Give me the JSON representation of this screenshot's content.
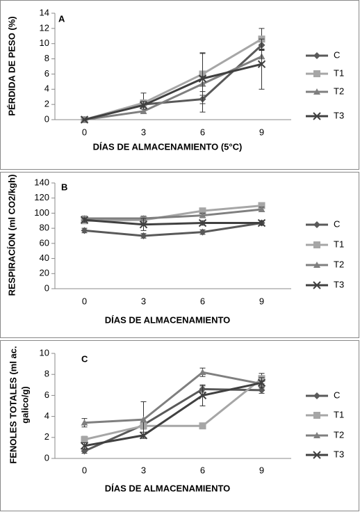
{
  "chart_data": [
    {
      "type": "line",
      "annotation": "A",
      "xlabel": "DÍAS DE ALMACENAMIENTO (5°C)",
      "ylabel": "PÉRDIDA DE PESO (%)",
      "categories": [
        "0",
        "3",
        "6",
        "9"
      ],
      "ylim": [
        0,
        14
      ],
      "yticks": [
        0,
        2,
        4,
        6,
        8,
        10,
        12,
        14
      ],
      "legend": "right",
      "series": [
        {
          "name": "C",
          "color": "#595959",
          "marker": "diamond",
          "values": [
            0,
            2.0,
            2.7,
            9.8
          ],
          "errors": [
            0,
            0.4,
            1.7,
            0.5
          ]
        },
        {
          "name": "T1",
          "color": "#a6a6a6",
          "marker": "square",
          "values": [
            0,
            2.2,
            6.0,
            10.6
          ],
          "errors": [
            0,
            1.3,
            2.8,
            1.4
          ]
        },
        {
          "name": "T2",
          "color": "#7f7f7f",
          "marker": "triangle",
          "values": [
            0,
            1.1,
            4.7,
            8.3
          ],
          "errors": [
            0,
            0.3,
            1.0,
            0.8
          ]
        },
        {
          "name": "T3",
          "color": "#404040",
          "marker": "x",
          "values": [
            0,
            1.9,
            5.4,
            7.3
          ],
          "errors": [
            0,
            0.5,
            3.3,
            3.3
          ]
        }
      ]
    },
    {
      "type": "line",
      "annotation": "B",
      "xlabel": "DÍAS DE ALMACENAMIENTO",
      "ylabel": "RESPIRACÍON (ml CO2/kgh)",
      "categories": [
        "0",
        "3",
        "6",
        "9"
      ],
      "ylim": [
        0,
        140
      ],
      "yticks": [
        0,
        20,
        40,
        60,
        80,
        100,
        120,
        140
      ],
      "legend": "right",
      "series": [
        {
          "name": "C",
          "color": "#595959",
          "marker": "diamond",
          "values": [
            77,
            70,
            75,
            87
          ],
          "errors": [
            3,
            3,
            3,
            3
          ]
        },
        {
          "name": "T1",
          "color": "#a6a6a6",
          "marker": "square",
          "values": [
            90,
            91,
            103,
            110
          ],
          "errors": [
            3,
            3,
            3,
            3
          ]
        },
        {
          "name": "T2",
          "color": "#7f7f7f",
          "marker": "triangle",
          "values": [
            93,
            93,
            97,
            105
          ],
          "errors": [
            3,
            3,
            3,
            3
          ]
        },
        {
          "name": "T3",
          "color": "#404040",
          "marker": "x",
          "values": [
            91,
            85,
            87,
            87
          ],
          "errors": [
            3,
            8,
            3,
            3
          ]
        }
      ]
    },
    {
      "type": "line",
      "annotation": "C",
      "xlabel": "DÍAS DE ALMACENAMIENTO",
      "ylabel": [
        "FENOLES TOTALES (ml ac.",
        "galico/g)"
      ],
      "categories": [
        "0",
        "3",
        "6",
        "9"
      ],
      "ylim": [
        0,
        10
      ],
      "yticks": [
        0,
        2,
        4,
        6,
        8,
        10
      ],
      "legend": "right",
      "series": [
        {
          "name": "C",
          "color": "#595959",
          "marker": "diamond",
          "values": [
            0.7,
            3.2,
            6.6,
            6.5
          ],
          "errors": [
            0.2,
            0.3,
            0.3,
            0.3
          ]
        },
        {
          "name": "T1",
          "color": "#a6a6a6",
          "marker": "square",
          "values": [
            1.8,
            3.1,
            3.1,
            7.6
          ],
          "errors": [
            0.3,
            0.3,
            0.2,
            0.5
          ]
        },
        {
          "name": "T2",
          "color": "#7f7f7f",
          "marker": "triangle",
          "values": [
            3.4,
            3.7,
            8.2,
            7.1
          ],
          "errors": [
            0.4,
            1.7,
            0.4,
            0.3
          ]
        },
        {
          "name": "T3",
          "color": "#404040",
          "marker": "x",
          "values": [
            1.2,
            2.2,
            6.0,
            7.2
          ],
          "errors": [
            0.3,
            0.3,
            1.0,
            0.5
          ]
        }
      ]
    }
  ]
}
